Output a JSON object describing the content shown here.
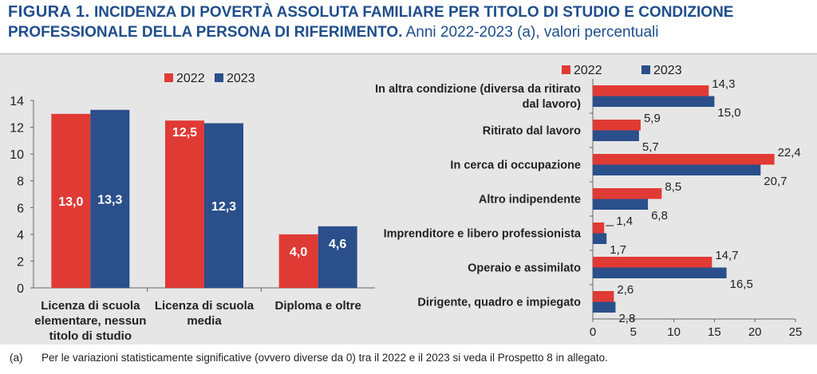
{
  "title": {
    "figure": "FIGURA 1.",
    "main": "INCIDENZA DI POVERTÀ ASSOLUTA FAMILIARE PER TITOLO DI STUDIO E CONDIZIONE PROFESSIONALE DELLA PERSONA DI RIFERIMENTO.",
    "sub": "Anni 2022-2023 (a), valori percentuali"
  },
  "footnote": {
    "mark": "(a)",
    "text": "Per le variazioni statisticamente significative (ovvero diverse da 0) tra il 2022 e il 2023 si veda il Prospetto 8 in allegato."
  },
  "colors": {
    "s2022": "#e03a35",
    "s2023": "#2a4f8a",
    "panel": "#e6e6e6"
  },
  "chart_data": [
    {
      "type": "bar",
      "categories": [
        [
          "Licenza di scuola",
          "elementare, nessun",
          "titolo di studio"
        ],
        [
          "Licenza di scuola",
          "media"
        ],
        [
          "Diploma e oltre"
        ]
      ],
      "series": [
        {
          "name": "2022",
          "values": [
            13.0,
            12.5,
            4.0
          ],
          "labels": [
            "13,0",
            "12,5",
            "4,0"
          ]
        },
        {
          "name": "2023",
          "values": [
            13.3,
            12.3,
            4.6
          ],
          "labels": [
            "13,3",
            "12,3",
            "4,6"
          ]
        }
      ],
      "ylim": [
        0,
        14
      ],
      "yticks": [
        "0",
        "2",
        "4",
        "6",
        "8",
        "10",
        "12",
        "14"
      ],
      "legend": "top-center"
    },
    {
      "type": "bar",
      "orientation": "horizontal",
      "categories": [
        [
          "In altra condizione (diversa da ritirato",
          "dal lavoro)"
        ],
        [
          "Ritirato dal lavoro"
        ],
        [
          "In cerca di occupazione"
        ],
        [
          "Altro indipendente"
        ],
        [
          "Imprenditore e libero professionista"
        ],
        [
          "Operaio e assimilato"
        ],
        [
          "Dirigente, quadro e impiegato"
        ]
      ],
      "series": [
        {
          "name": "2022",
          "values": [
            14.3,
            5.9,
            22.4,
            8.5,
            1.4,
            14.7,
            2.6
          ],
          "labels": [
            "14,3",
            "5,9",
            "22,4",
            "8,5",
            "1,4",
            "14,7",
            "2,6"
          ]
        },
        {
          "name": "2023",
          "values": [
            15.0,
            5.7,
            20.7,
            6.8,
            1.7,
            16.5,
            2.8
          ],
          "labels": [
            "15,0",
            "5,7",
            "20,7",
            "6,8",
            "1,7",
            "16,5",
            "2,8"
          ]
        }
      ],
      "xlim": [
        0,
        25
      ],
      "xticks": [
        "0",
        "5",
        "10",
        "15",
        "20",
        "25"
      ],
      "legend": "top-left"
    }
  ]
}
